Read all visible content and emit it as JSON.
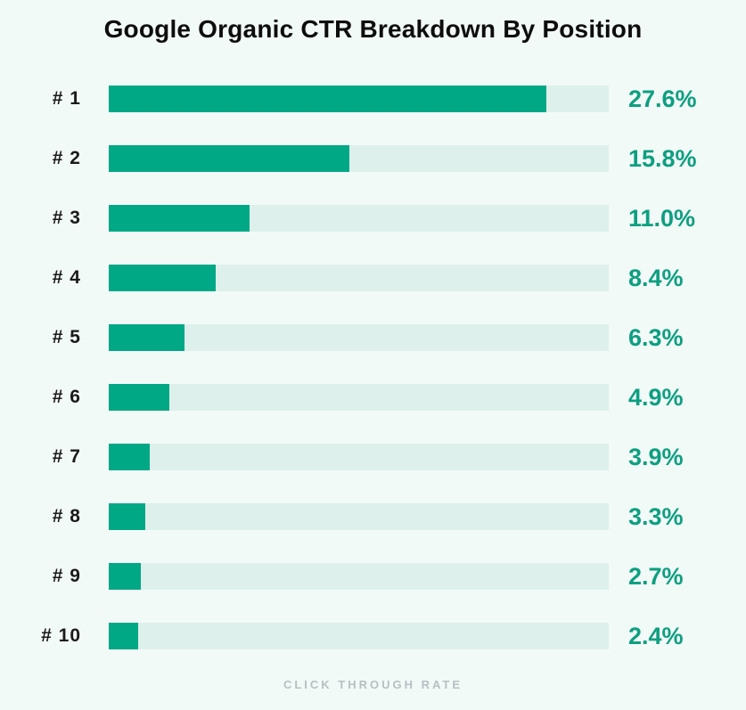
{
  "page": {
    "background": "#f2faf7"
  },
  "chart_data": {
    "type": "bar",
    "orientation": "horizontal",
    "title": "Google Organic CTR Breakdown By Position",
    "xlabel": "CLICK THROUGH RATE",
    "ylabel": "",
    "categories": [
      "# 1",
      "# 2",
      "# 3",
      "# 4",
      "# 5",
      "# 6",
      "# 7",
      "# 8",
      "# 9",
      "# 10"
    ],
    "values": [
      27.6,
      15.8,
      11.0,
      8.4,
      6.3,
      4.9,
      3.9,
      3.3,
      2.7,
      2.4
    ],
    "value_labels": [
      "27.6%",
      "15.8%",
      "11.0%",
      "8.4%",
      "6.3%",
      "4.9%",
      "3.9%",
      "3.3%",
      "2.7%",
      "2.4%"
    ],
    "bar_fractions": [
      0.875,
      0.481,
      0.282,
      0.214,
      0.151,
      0.121,
      0.082,
      0.073,
      0.064,
      0.059
    ],
    "xlim": [
      0,
      31.5
    ],
    "grid": false,
    "legend": false,
    "bar_color": "#00a886",
    "track_color": "#ddf0eb",
    "value_color": "#0d9f81",
    "label_color": "#1a1a1a",
    "title_color": "#0d0d0d",
    "caption_color": "#b4c1c2",
    "background_color": "#f2faf7"
  }
}
